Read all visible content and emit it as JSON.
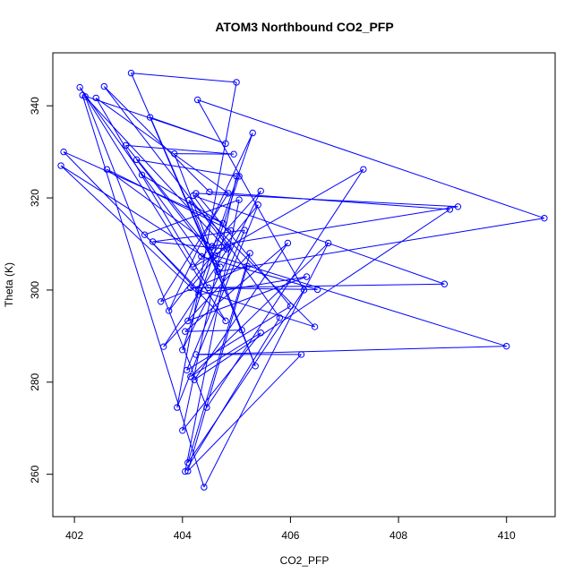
{
  "chart_data": {
    "type": "scatter",
    "mode": "points+lines",
    "title": "ATOM3 Northbound CO2_PFP",
    "xlabel": "CO2_PFP",
    "ylabel": "Theta (K)",
    "xlim": [
      401.6,
      410.9
    ],
    "ylim": [
      250.8,
      351.5
    ],
    "xticks": [
      402,
      404,
      406,
      408,
      410
    ],
    "yticks": [
      260,
      280,
      300,
      320,
      340
    ],
    "grid": false,
    "color": "#0000ff",
    "series": [
      {
        "x": [
          401.75,
          401.8,
          402.1,
          402.15,
          402.2,
          402.4,
          402.55,
          402.6,
          402.95,
          403.05,
          403.15,
          403.25,
          403.3,
          403.4,
          403.45,
          403.6,
          403.65,
          403.75,
          403.85,
          403.9,
          404.0,
          404.0,
          404.05,
          404.05,
          404.08,
          404.1,
          404.1,
          404.1,
          404.12,
          404.15,
          404.15,
          404.2,
          404.2,
          404.22,
          404.25,
          404.25,
          404.28,
          404.3,
          404.3,
          404.35,
          404.4,
          404.45,
          404.48,
          404.5,
          404.55,
          404.6,
          404.65,
          404.7,
          404.75,
          404.8,
          404.8,
          404.82,
          404.85,
          404.85,
          404.9,
          404.95,
          405.0,
          405.0,
          405.05,
          405.05,
          405.1,
          405.15,
          405.2,
          405.25,
          405.3,
          405.35,
          405.4,
          405.45,
          405.45,
          405.8,
          405.95,
          406.0,
          406.2,
          406.25,
          406.3,
          406.45,
          406.5,
          406.7,
          407.35,
          408.85,
          408.95,
          409.1,
          410.0,
          410.7
        ],
        "y": [
          327.0,
          330.0,
          344.0,
          342.3,
          342.0,
          341.7,
          344.2,
          326.2,
          331.4,
          347.1,
          328.3,
          325.0,
          312.0,
          337.5,
          310.5,
          297.5,
          287.7,
          295.5,
          329.6,
          274.5,
          269.5,
          287.0,
          260.6,
          291.0,
          282.6,
          260.7,
          262.5,
          293.3,
          319.5,
          300.5,
          281.2,
          305.0,
          320.5,
          280.5,
          321.0,
          286.0,
          341.3,
          299.0,
          300.0,
          307.3,
          257.2,
          274.5,
          300.5,
          321.3,
          309.5,
          307.5,
          304.0,
          305.0,
          314.5,
          293.3,
          331.8,
          308.9,
          321.0,
          309.2,
          312.9,
          329.5,
          345.1,
          324.7,
          324.7,
          319.6,
          291.3,
          313.0,
          305.2,
          308.0,
          334.1,
          283.5,
          318.5,
          290.7,
          321.5,
          294.0,
          310.2,
          296.5,
          286.0,
          300.0,
          302.9,
          292.0,
          300.1,
          310.2,
          326.2,
          301.3,
          317.5,
          318.1,
          287.8,
          315.6
        ]
      }
    ]
  }
}
